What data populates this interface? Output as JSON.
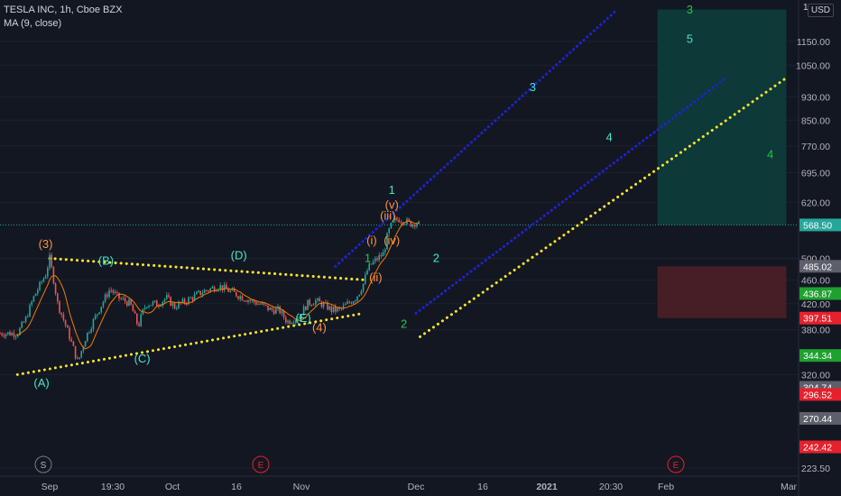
{
  "header": {
    "title": "TESLA INC, 1h, Cboe BZX",
    "indicator": "MA (9, close)"
  },
  "currency_button": "USD",
  "top_scale_label": "1",
  "colors": {
    "background": "#131722",
    "candle_up": "#26a69a",
    "candle_down": "#ef5350",
    "ma": "#f57c00",
    "channel_blue": "#1e22d6",
    "channel_yellow": "#f5e52a",
    "wave_orange": "#ff9244",
    "wave_teal": "#45e6c8",
    "wave_green": "#1fc944",
    "target_zone": "#0d3b3b",
    "stop_zone": "#4a1f26"
  },
  "time_axis": {
    "labels": [
      "Sep",
      "19:30",
      "Oct",
      "16",
      "Nov",
      "Dec",
      "16",
      "2021",
      "20:30",
      "Feb",
      "Mar"
    ],
    "event_badges": [
      "S",
      "E",
      "E"
    ]
  },
  "chart_data": {
    "type": "candlestick",
    "title": "TESLA INC, 1h, Cboe BZX",
    "indicator": "MA (9, close)",
    "y_scale": "log",
    "ylim": [
      215,
      1300
    ],
    "y_ticks": [
      1150,
      1050,
      930,
      850,
      770,
      695,
      620,
      500,
      460,
      420,
      380,
      320,
      223.5
    ],
    "price_tags": [
      {
        "value": "568.50",
        "kind": "last"
      },
      {
        "value": "485.02",
        "kind": "neutral"
      },
      {
        "value": "436.87",
        "kind": "up"
      },
      {
        "value": "397.51",
        "kind": "down"
      },
      {
        "value": "344.34",
        "kind": "up"
      },
      {
        "value": "304.74",
        "kind": "neutral"
      },
      {
        "value": "296.52",
        "kind": "down"
      },
      {
        "value": "270.44",
        "kind": "neutral"
      },
      {
        "value": "242.42",
        "kind": "down"
      }
    ],
    "price_path": [
      {
        "t": "Aug 24",
        "v": 375
      },
      {
        "t": "Aug 26",
        "v": 395
      },
      {
        "t": "Aug 28",
        "v": 430
      },
      {
        "t": "Aug 31",
        "v": 470
      },
      {
        "t": "Sep 1",
        "v": 500
      },
      {
        "t": "Sep 3",
        "v": 420
      },
      {
        "t": "Sep 8",
        "v": 335
      },
      {
        "t": "Sep 10",
        "v": 370
      },
      {
        "t": "Sep 14",
        "v": 420
      },
      {
        "t": "Sep 16",
        "v": 445
      },
      {
        "t": "Sep 18",
        "v": 430
      },
      {
        "t": "Sep 21",
        "v": 420
      },
      {
        "t": "Sep 23",
        "v": 385
      },
      {
        "t": "Sep 24",
        "v": 405
      },
      {
        "t": "Sep 25",
        "v": 420
      },
      {
        "t": "Sep 28",
        "v": 420
      },
      {
        "t": "Sep 30",
        "v": 430
      },
      {
        "t": "Oct 2",
        "v": 415
      },
      {
        "t": "Oct 5",
        "v": 425
      },
      {
        "t": "Oct 9",
        "v": 440
      },
      {
        "t": "Oct 13",
        "v": 450
      },
      {
        "t": "Oct 16",
        "v": 440
      },
      {
        "t": "Oct 19",
        "v": 430
      },
      {
        "t": "Oct 21",
        "v": 425
      },
      {
        "t": "Oct 23",
        "v": 420
      },
      {
        "t": "Oct 26",
        "v": 410
      },
      {
        "t": "Oct 28",
        "v": 410
      },
      {
        "t": "Oct 30",
        "v": 392
      },
      {
        "t": "Nov 2",
        "v": 400
      },
      {
        "t": "Nov 4",
        "v": 420
      },
      {
        "t": "Nov 6",
        "v": 425
      },
      {
        "t": "Nov 9",
        "v": 415
      },
      {
        "t": "Nov 10",
        "v": 410
      },
      {
        "t": "Nov 12",
        "v": 410
      },
      {
        "t": "Nov 16",
        "v": 430
      },
      {
        "t": "Nov 17",
        "v": 440
      },
      {
        "t": "Nov 18",
        "v": 455
      },
      {
        "t": "Nov 19",
        "v": 480
      },
      {
        "t": "Nov 20",
        "v": 490
      },
      {
        "t": "Nov 23",
        "v": 510
      },
      {
        "t": "Nov 24",
        "v": 550
      },
      {
        "t": "Nov 25",
        "v": 570
      },
      {
        "t": "Nov 26",
        "v": 580
      },
      {
        "t": "Nov 27",
        "v": 582
      },
      {
        "t": "Nov 30",
        "v": 570
      },
      {
        "t": "Dec 1",
        "v": 575
      },
      {
        "t": "Dec 2",
        "v": 568
      }
    ],
    "trendlines": [
      {
        "color": "yellow",
        "from": {
          "t": "Sep 1",
          "v": 500
        },
        "to": {
          "t": "Nov 19",
          "v": 460
        }
      },
      {
        "color": "yellow",
        "from": {
          "t": "Aug 24",
          "v": 320
        },
        "to": {
          "t": "Nov 18",
          "v": 405
        }
      },
      {
        "color": "blue",
        "from": {
          "t": "Nov 11",
          "v": 485
        },
        "to": {
          "t": "Jan 20",
          "v": 1300
        }
      },
      {
        "color": "blue",
        "from": {
          "t": "Dec 1",
          "v": 405
        },
        "to": {
          "t": "Feb 16",
          "v": 1000
        }
      },
      {
        "color": "yellow",
        "from": {
          "t": "Dec 2",
          "v": 370
        },
        "to": {
          "t": "Mar 3",
          "v": 1000
        }
      }
    ],
    "zones": [
      {
        "kind": "target",
        "from_t": "Jan 30",
        "to_t": "Mar 3",
        "low": 568.5,
        "high": 1300
      },
      {
        "kind": "stop",
        "from_t": "Jan 30",
        "to_t": "Mar 3",
        "low": 397.51,
        "high": 485.02
      }
    ],
    "wave_labels": [
      {
        "text": "(3)",
        "color": "orange",
        "t": "Aug 31",
        "v": 520
      },
      {
        "text": "(A)",
        "color": "teal",
        "t": "Aug 30",
        "v": 305
      },
      {
        "text": "(B)",
        "color": "teal",
        "t": "Sep 15",
        "v": 488
      },
      {
        "text": "(C)",
        "color": "teal",
        "t": "Sep 24",
        "v": 335
      },
      {
        "text": "(D)",
        "color": "teal",
        "t": "Oct 18",
        "v": 498
      },
      {
        "text": "(E)",
        "color": "teal",
        "t": "Nov 3",
        "v": 392
      },
      {
        "text": "(4)",
        "color": "orange",
        "t": "Nov 7",
        "v": 378
      },
      {
        "text": "1",
        "color": "green",
        "t": "Nov 19",
        "v": 493
      },
      {
        "text": "(i)",
        "color": "orange",
        "t": "Nov 20",
        "v": 528
      },
      {
        "text": "(ii)",
        "color": "orange",
        "t": "Nov 21",
        "v": 458
      },
      {
        "text": "(iii)",
        "color": "orange",
        "t": "Nov 24",
        "v": 580
      },
      {
        "text": "(iv)",
        "color": "orange",
        "t": "Nov 25",
        "v": 528
      },
      {
        "text": "(v)",
        "color": "orange",
        "t": "Nov 25",
        "v": 605
      },
      {
        "text": "1",
        "color": "teal",
        "t": "Nov 25",
        "v": 640
      },
      {
        "text": "2",
        "color": "green",
        "t": "Nov 28",
        "v": 383
      },
      {
        "text": "2",
        "color": "teal",
        "t": "Dec 6",
        "v": 493
      },
      {
        "text": "3",
        "color": "teal",
        "t": "Dec 30",
        "v": 950
      },
      {
        "text": "4",
        "color": "teal",
        "t": "Jan 18",
        "v": 785
      },
      {
        "text": "3",
        "color": "green",
        "t": "Feb 7",
        "v": 1280
      },
      {
        "text": "5",
        "color": "teal",
        "t": "Feb 7",
        "v": 1145
      },
      {
        "text": "4",
        "color": "green",
        "t": "Feb 27",
        "v": 735
      }
    ]
  }
}
